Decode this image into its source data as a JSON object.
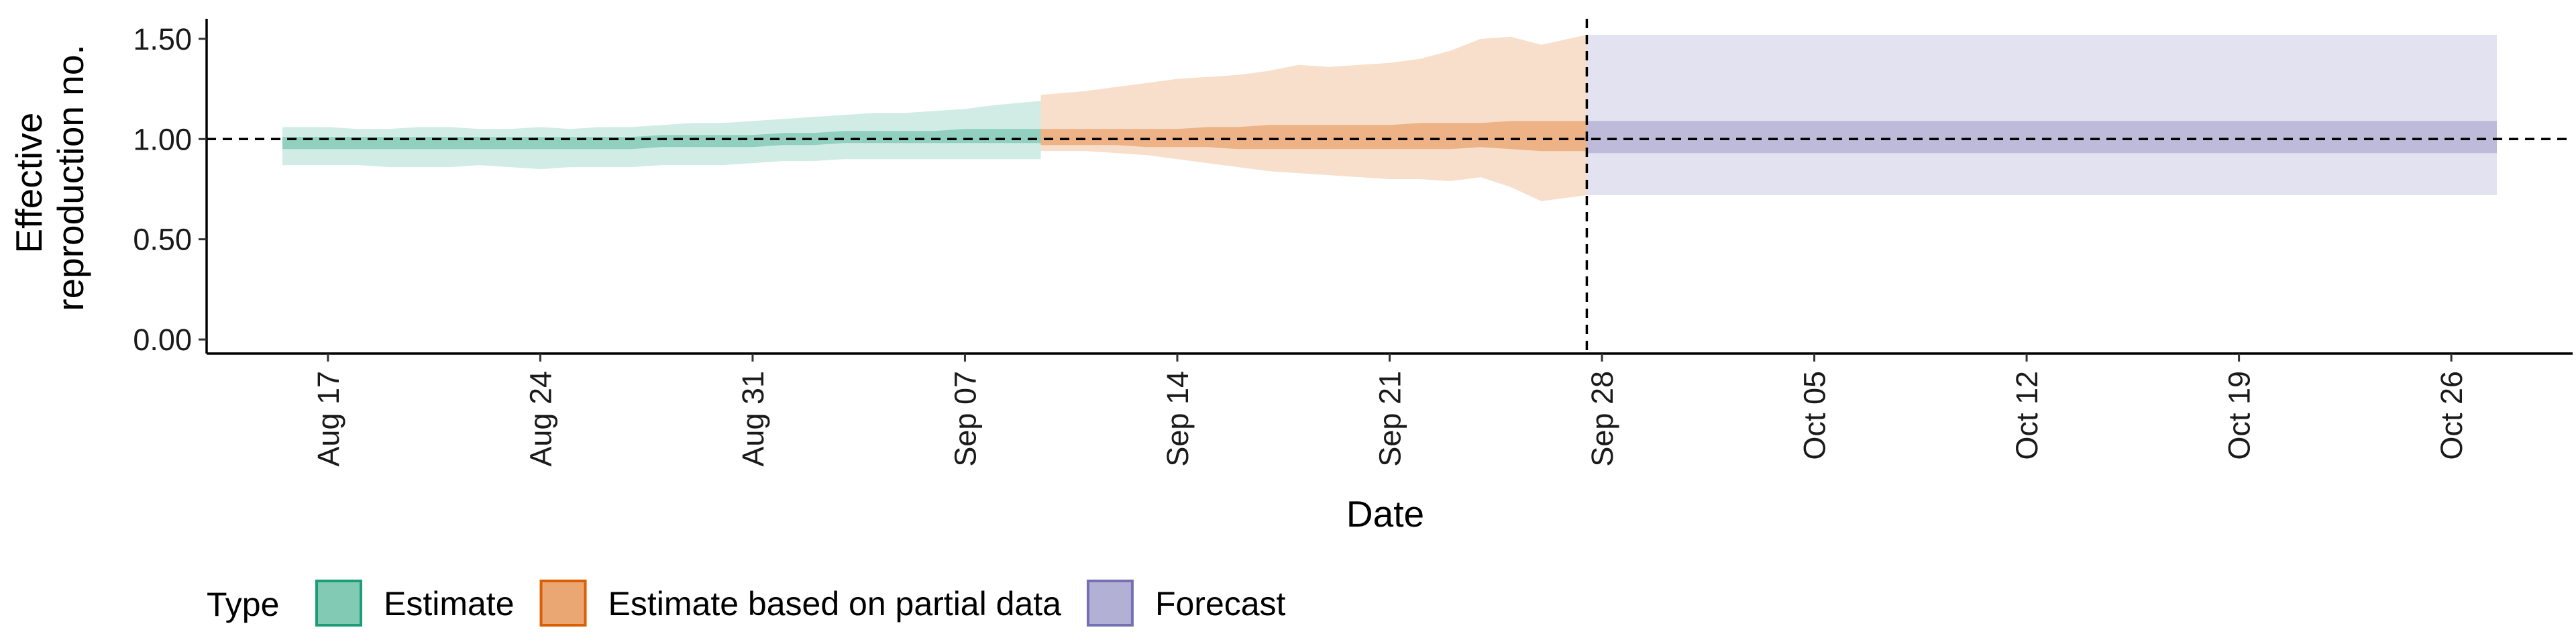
{
  "chart_data": {
    "type": "area",
    "xlabel": "Date",
    "ylabel_lines": [
      "Effective",
      "reproduction no."
    ],
    "ylim": [
      0,
      1.6
    ],
    "y_ticks": [
      {
        "value": 0.0,
        "label": "0.00"
      },
      {
        "value": 0.5,
        "label": "0.50"
      },
      {
        "value": 1.0,
        "label": "1.00"
      },
      {
        "value": 1.5,
        "label": "1.50"
      }
    ],
    "x_ticks": [
      {
        "date": "2020-08-17",
        "label": "Aug 17"
      },
      {
        "date": "2020-08-24",
        "label": "Aug 24"
      },
      {
        "date": "2020-08-31",
        "label": "Aug 31"
      },
      {
        "date": "2020-09-07",
        "label": "Sep 07"
      },
      {
        "date": "2020-09-14",
        "label": "Sep 14"
      },
      {
        "date": "2020-09-21",
        "label": "Sep 21"
      },
      {
        "date": "2020-09-28",
        "label": "Sep 28"
      },
      {
        "date": "2020-10-05",
        "label": "Oct 05"
      },
      {
        "date": "2020-10-12",
        "label": "Oct 12"
      },
      {
        "date": "2020-10-19",
        "label": "Oct 19"
      },
      {
        "date": "2020-10-26",
        "label": "Oct 26"
      }
    ],
    "xlim": [
      "2020-08-13",
      "2020-10-30"
    ],
    "reference_line_y": 1.0,
    "vertical_line_date": "2020-09-27",
    "legend": {
      "title": "Type",
      "position": "bottom",
      "entries": [
        {
          "label": "Estimate",
          "fill": "#1b9e77",
          "stroke": "#1b9e77"
        },
        {
          "label": "Estimate based on partial data",
          "fill": "#d95f02",
          "stroke": "#d95f02"
        },
        {
          "label": "Forecast",
          "fill": "#7570b3",
          "stroke": "#7570b3"
        }
      ]
    },
    "series": [
      {
        "name": "Estimate",
        "color": "#1b9e77",
        "dates": [
          "2020-08-16",
          "2020-08-17",
          "2020-08-18",
          "2020-08-19",
          "2020-08-20",
          "2020-08-21",
          "2020-08-22",
          "2020-08-23",
          "2020-08-24",
          "2020-08-25",
          "2020-08-26",
          "2020-08-27",
          "2020-08-28",
          "2020-08-29",
          "2020-08-30",
          "2020-08-31",
          "2020-09-01",
          "2020-09-02",
          "2020-09-03",
          "2020-09-04",
          "2020-09-05",
          "2020-09-06",
          "2020-09-07",
          "2020-09-08",
          "2020-09-09"
        ],
        "lower_90": [
          0.87,
          0.87,
          0.87,
          0.86,
          0.86,
          0.86,
          0.87,
          0.86,
          0.85,
          0.86,
          0.86,
          0.86,
          0.87,
          0.87,
          0.87,
          0.88,
          0.89,
          0.89,
          0.9,
          0.9,
          0.9,
          0.9,
          0.9,
          0.9,
          0.9
        ],
        "upper_90": [
          1.06,
          1.06,
          1.05,
          1.05,
          1.06,
          1.06,
          1.05,
          1.05,
          1.06,
          1.05,
          1.06,
          1.06,
          1.07,
          1.08,
          1.08,
          1.09,
          1.1,
          1.11,
          1.12,
          1.13,
          1.13,
          1.14,
          1.15,
          1.17,
          1.19
        ],
        "lower_50": [
          0.95,
          0.95,
          0.95,
          0.95,
          0.95,
          0.95,
          0.95,
          0.95,
          0.95,
          0.95,
          0.95,
          0.95,
          0.96,
          0.96,
          0.96,
          0.96,
          0.97,
          0.97,
          0.98,
          0.98,
          0.98,
          0.98,
          0.98,
          0.98,
          0.98
        ],
        "upper_50": [
          1.01,
          1.01,
          1.01,
          1.01,
          1.01,
          1.01,
          1.01,
          1.01,
          1.01,
          1.01,
          1.01,
          1.01,
          1.02,
          1.02,
          1.02,
          1.02,
          1.03,
          1.03,
          1.04,
          1.04,
          1.04,
          1.04,
          1.05,
          1.05,
          1.05
        ]
      },
      {
        "name": "Estimate based on partial data",
        "color": "#d95f02",
        "dates": [
          "2020-09-10",
          "2020-09-11",
          "2020-09-12",
          "2020-09-13",
          "2020-09-14",
          "2020-09-15",
          "2020-09-16",
          "2020-09-17",
          "2020-09-18",
          "2020-09-19",
          "2020-09-20",
          "2020-09-21",
          "2020-09-22",
          "2020-09-23",
          "2020-09-24",
          "2020-09-25",
          "2020-09-26",
          "2020-09-27"
        ],
        "lower_90": [
          0.94,
          0.94,
          0.93,
          0.92,
          0.9,
          0.88,
          0.86,
          0.84,
          0.83,
          0.82,
          0.81,
          0.8,
          0.8,
          0.79,
          0.81,
          0.76,
          0.69,
          0.72
        ],
        "upper_90": [
          1.22,
          1.24,
          1.26,
          1.28,
          1.3,
          1.31,
          1.32,
          1.34,
          1.37,
          1.36,
          1.37,
          1.38,
          1.4,
          1.44,
          1.5,
          1.51,
          1.47,
          1.52
        ],
        "lower_50": [
          0.97,
          0.97,
          0.97,
          0.96,
          0.96,
          0.96,
          0.95,
          0.95,
          0.95,
          0.95,
          0.95,
          0.95,
          0.95,
          0.95,
          0.96,
          0.95,
          0.94,
          0.94
        ],
        "upper_50": [
          1.05,
          1.05,
          1.05,
          1.05,
          1.05,
          1.06,
          1.06,
          1.07,
          1.07,
          1.07,
          1.07,
          1.07,
          1.08,
          1.08,
          1.08,
          1.09,
          1.09,
          1.09
        ]
      },
      {
        "name": "Forecast",
        "color": "#7570b3",
        "dates": [
          "2020-09-28",
          "2020-10-27"
        ],
        "lower_90": [
          0.72,
          0.72
        ],
        "upper_90": [
          1.52,
          1.52
        ],
        "lower_50": [
          0.93,
          0.93
        ],
        "upper_50": [
          1.09,
          1.09
        ]
      }
    ]
  }
}
